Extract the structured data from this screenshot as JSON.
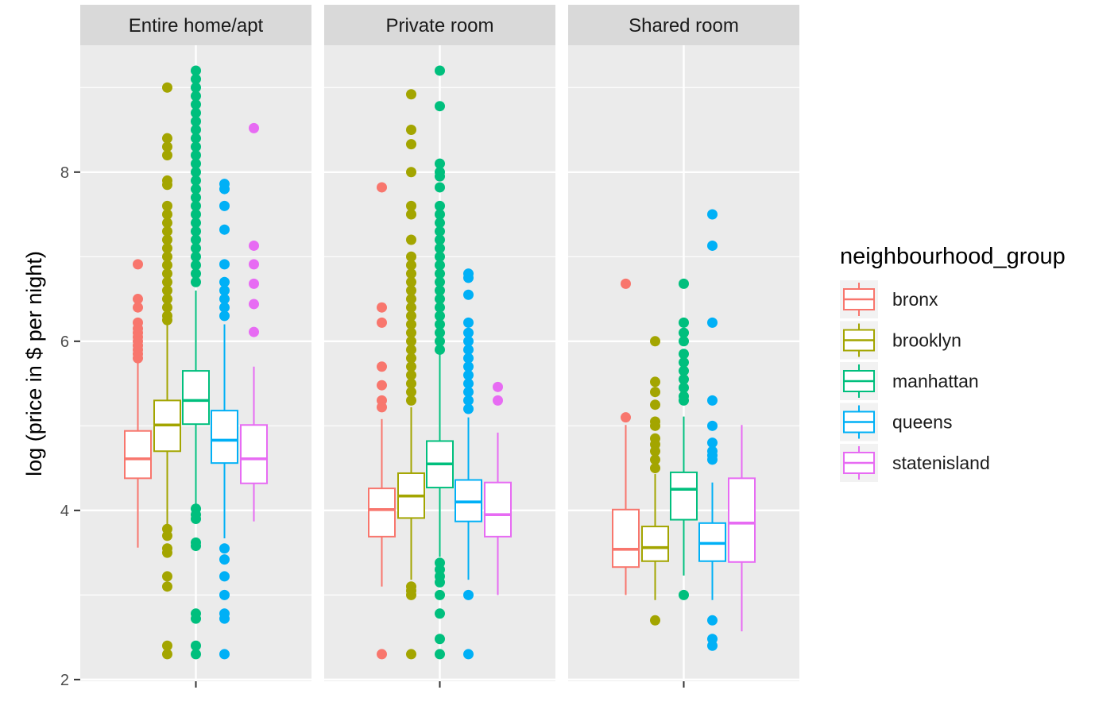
{
  "chart_data": {
    "type": "boxplot",
    "ylabel": "log (price in $ per night)",
    "xlabel": "",
    "ylim": [
      1.98,
      9.5
    ],
    "yticks": [
      "2",
      "4",
      "6",
      "8"
    ],
    "grid": true,
    "legend": {
      "title": "neighbourhood_group",
      "position": "right",
      "entries": [
        "bronx",
        "brooklyn",
        "manhattan",
        "queens",
        "statenisland"
      ]
    },
    "colors": {
      "bronx": "#F8766D",
      "brooklyn": "#A3A500",
      "manhattan": "#00BF7D",
      "queens": "#00B0F6",
      "statenisland": "#E76BF3"
    },
    "panels": [
      {
        "label": "Entire home/apt",
        "boxes": [
          {
            "group": "bronx",
            "q1": 4.38,
            "median": 4.61,
            "q3": 4.94,
            "lower": 3.56,
            "upper": 5.76,
            "outliers": [
              6.91,
              6.5,
              6.4,
              6.22,
              6.15,
              6.1,
              6.05,
              6.0,
              5.95,
              5.9,
              5.85,
              5.8
            ]
          },
          {
            "group": "brooklyn",
            "q1": 4.7,
            "median": 5.01,
            "q3": 5.3,
            "lower": 3.8,
            "upper": 6.2,
            "outliers": [
              9.0,
              8.4,
              8.3,
              8.2,
              7.9,
              7.85,
              7.6,
              7.5,
              7.4,
              7.3,
              7.2,
              7.1,
              7.0,
              6.9,
              6.8,
              6.7,
              6.6,
              6.5,
              6.4,
              6.3,
              6.25,
              3.78,
              3.7,
              3.55,
              3.5,
              3.22,
              3.1,
              2.4,
              2.3
            ]
          },
          {
            "group": "manhattan",
            "q1": 5.02,
            "median": 5.3,
            "q3": 5.65,
            "lower": 4.05,
            "upper": 6.6,
            "outliers": [
              9.2,
              9.1,
              9.0,
              8.9,
              8.8,
              8.7,
              8.6,
              8.5,
              8.4,
              8.3,
              8.2,
              8.1,
              8.0,
              7.9,
              7.8,
              7.7,
              7.6,
              7.5,
              7.4,
              7.3,
              7.2,
              7.1,
              7.0,
              6.9,
              6.8,
              6.7,
              4.02,
              3.95,
              3.9,
              3.62,
              3.58,
              2.78,
              2.72,
              2.4,
              2.3
            ]
          },
          {
            "group": "queens",
            "q1": 4.56,
            "median": 4.83,
            "q3": 5.18,
            "lower": 3.67,
            "upper": 6.2,
            "outliers": [
              7.86,
              7.8,
              7.6,
              7.32,
              6.91,
              6.7,
              6.6,
              6.5,
              6.4,
              6.3,
              3.55,
              3.42,
              3.22,
              3.0,
              2.78,
              2.72,
              2.3
            ]
          },
          {
            "group": "statenisland",
            "q1": 4.32,
            "median": 4.61,
            "q3": 5.01,
            "lower": 3.87,
            "upper": 5.7,
            "outliers": [
              8.52,
              7.13,
              6.91,
              6.68,
              6.44,
              6.11
            ]
          }
        ]
      },
      {
        "label": "Private room",
        "boxes": [
          {
            "group": "bronx",
            "q1": 3.69,
            "median": 4.01,
            "q3": 4.26,
            "lower": 3.1,
            "upper": 5.08,
            "outliers": [
              7.82,
              6.4,
              6.22,
              5.7,
              5.48,
              5.3,
              5.22,
              2.3
            ]
          },
          {
            "group": "brooklyn",
            "q1": 3.91,
            "median": 4.17,
            "q3": 4.44,
            "lower": 3.18,
            "upper": 5.22,
            "outliers": [
              8.92,
              8.5,
              8.33,
              8.0,
              7.6,
              7.5,
              7.2,
              7.0,
              6.9,
              6.8,
              6.7,
              6.6,
              6.5,
              6.4,
              6.3,
              6.2,
              6.1,
              6.0,
              5.9,
              5.8,
              5.7,
              5.6,
              5.5,
              5.4,
              5.3,
              3.1,
              3.05,
              3.0,
              2.3
            ]
          },
          {
            "group": "manhattan",
            "q1": 4.27,
            "median": 4.55,
            "q3": 4.82,
            "lower": 3.45,
            "upper": 5.85,
            "outliers": [
              9.2,
              8.78,
              8.1,
              8.0,
              7.95,
              7.82,
              7.6,
              7.5,
              7.4,
              7.3,
              7.2,
              7.1,
              7.0,
              6.9,
              6.8,
              6.7,
              6.6,
              6.5,
              6.4,
              6.3,
              6.2,
              6.1,
              6.0,
              5.9,
              3.38,
              3.3,
              3.22,
              3.15,
              3.0,
              2.78,
              2.48,
              2.3
            ]
          },
          {
            "group": "queens",
            "q1": 3.87,
            "median": 4.1,
            "q3": 4.36,
            "lower": 3.18,
            "upper": 5.1,
            "outliers": [
              6.8,
              6.75,
              6.55,
              6.22,
              6.1,
              6.0,
              5.9,
              5.8,
              5.7,
              5.6,
              5.5,
              5.4,
              5.3,
              5.2,
              3.0,
              2.3
            ]
          },
          {
            "group": "statenisland",
            "q1": 3.69,
            "median": 3.95,
            "q3": 4.33,
            "lower": 3.0,
            "upper": 4.92,
            "outliers": [
              5.46,
              5.3
            ]
          }
        ]
      },
      {
        "label": "Shared room",
        "boxes": [
          {
            "group": "bronx",
            "q1": 3.33,
            "median": 3.54,
            "q3": 4.01,
            "lower": 3.0,
            "upper": 5.01,
            "outliers": [
              6.68,
              5.1
            ]
          },
          {
            "group": "brooklyn",
            "q1": 3.4,
            "median": 3.56,
            "q3": 3.81,
            "lower": 2.94,
            "upper": 4.43,
            "outliers": [
              6.0,
              5.52,
              5.4,
              5.25,
              5.05,
              5.0,
              4.85,
              4.78,
              4.7,
              4.6,
              4.5,
              2.7
            ]
          },
          {
            "group": "manhattan",
            "q1": 3.89,
            "median": 4.25,
            "q3": 4.45,
            "lower": 3.23,
            "upper": 5.11,
            "outliers": [
              6.68,
              6.22,
              6.1,
              6.0,
              5.85,
              5.75,
              5.65,
              5.55,
              5.45,
              5.35,
              5.3,
              3.0
            ]
          },
          {
            "group": "queens",
            "q1": 3.4,
            "median": 3.61,
            "q3": 3.85,
            "lower": 2.94,
            "upper": 4.33,
            "outliers": [
              7.5,
              7.13,
              6.22,
              5.3,
              5.0,
              4.8,
              4.7,
              4.65,
              4.6,
              2.7,
              2.48,
              2.4
            ]
          },
          {
            "group": "statenisland",
            "q1": 3.39,
            "median": 3.85,
            "q3": 4.38,
            "lower": 2.57,
            "upper": 5.01,
            "outliers": []
          }
        ]
      }
    ]
  }
}
